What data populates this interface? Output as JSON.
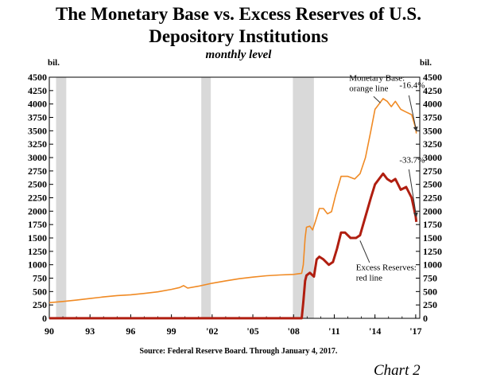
{
  "chart_data": {
    "type": "line",
    "title": "The Monetary Base vs. Excess Reserves of U.S.",
    "title_line2": "Depository Institutions",
    "subtitle": "monthly level",
    "unit_left": "bil.",
    "unit_right": "bil.",
    "source": "Source: Federal Reserve Board. Through January 4, 2017.",
    "chart_label": "Chart 2",
    "xlim": [
      1990,
      2017.3
    ],
    "ylim": [
      0,
      4500
    ],
    "x_ticks": [
      {
        "x": 1990,
        "label": "90"
      },
      {
        "x": 1993,
        "label": "93"
      },
      {
        "x": 1996,
        "label": "96"
      },
      {
        "x": 1999,
        "label": "99"
      },
      {
        "x": 2002,
        "label": "'02"
      },
      {
        "x": 2005,
        "label": "'05"
      },
      {
        "x": 2008,
        "label": "'08"
      },
      {
        "x": 2011,
        "label": "'11"
      },
      {
        "x": 2014,
        "label": "'14"
      },
      {
        "x": 2017,
        "label": "'17"
      }
    ],
    "y_ticks": [
      0,
      250,
      500,
      750,
      1000,
      1250,
      1500,
      1750,
      2000,
      2250,
      2500,
      2750,
      3000,
      3250,
      3500,
      3750,
      4000,
      4250,
      4500
    ],
    "recessions": [
      [
        1990.5,
        1991.25
      ],
      [
        2001.2,
        2001.9
      ],
      [
        2007.95,
        2009.5
      ]
    ],
    "series": [
      {
        "name": "Monetary Base",
        "color": "#f08a24",
        "points": [
          [
            1990.0,
            292
          ],
          [
            1991.0,
            315
          ],
          [
            1992.0,
            340
          ],
          [
            1993.0,
            370
          ],
          [
            1994.0,
            400
          ],
          [
            1995.0,
            425
          ],
          [
            1996.0,
            440
          ],
          [
            1997.0,
            465
          ],
          [
            1998.0,
            495
          ],
          [
            1999.0,
            540
          ],
          [
            1999.6,
            575
          ],
          [
            1999.9,
            610
          ],
          [
            2000.2,
            565
          ],
          [
            2001.0,
            600
          ],
          [
            2002.0,
            655
          ],
          [
            2003.0,
            700
          ],
          [
            2004.0,
            740
          ],
          [
            2005.0,
            770
          ],
          [
            2006.0,
            795
          ],
          [
            2007.0,
            810
          ],
          [
            2008.0,
            820
          ],
          [
            2008.6,
            840
          ],
          [
            2008.72,
            1000
          ],
          [
            2008.85,
            1500
          ],
          [
            2008.95,
            1700
          ],
          [
            2009.2,
            1720
          ],
          [
            2009.4,
            1650
          ],
          [
            2009.6,
            1800
          ],
          [
            2009.9,
            2050
          ],
          [
            2010.2,
            2050
          ],
          [
            2010.5,
            1950
          ],
          [
            2010.8,
            1990
          ],
          [
            2011.1,
            2300
          ],
          [
            2011.5,
            2650
          ],
          [
            2012.0,
            2650
          ],
          [
            2012.5,
            2600
          ],
          [
            2012.9,
            2700
          ],
          [
            2013.3,
            3000
          ],
          [
            2013.7,
            3500
          ],
          [
            2014.0,
            3900
          ],
          [
            2014.3,
            4000
          ],
          [
            2014.6,
            4100
          ],
          [
            2014.9,
            4050
          ],
          [
            2015.2,
            3950
          ],
          [
            2015.5,
            4050
          ],
          [
            2015.9,
            3900
          ],
          [
            2016.3,
            3850
          ],
          [
            2016.7,
            3800
          ],
          [
            2017.0,
            3550
          ],
          [
            2017.05,
            3450
          ]
        ]
      },
      {
        "name": "Excess Reserves",
        "color": "#b01e10",
        "points": [
          [
            1990.0,
            2
          ],
          [
            2008.0,
            2
          ],
          [
            2008.6,
            2
          ],
          [
            2008.72,
            300
          ],
          [
            2008.85,
            700
          ],
          [
            2008.95,
            800
          ],
          [
            2009.2,
            850
          ],
          [
            2009.5,
            780
          ],
          [
            2009.7,
            1100
          ],
          [
            2009.9,
            1150
          ],
          [
            2010.2,
            1100
          ],
          [
            2010.6,
            1000
          ],
          [
            2010.9,
            1050
          ],
          [
            2011.2,
            1300
          ],
          [
            2011.5,
            1600
          ],
          [
            2011.8,
            1600
          ],
          [
            2012.2,
            1500
          ],
          [
            2012.6,
            1500
          ],
          [
            2012.9,
            1550
          ],
          [
            2013.3,
            1900
          ],
          [
            2013.7,
            2250
          ],
          [
            2014.0,
            2500
          ],
          [
            2014.3,
            2600
          ],
          [
            2014.6,
            2700
          ],
          [
            2014.9,
            2600
          ],
          [
            2015.2,
            2550
          ],
          [
            2015.5,
            2600
          ],
          [
            2015.9,
            2400
          ],
          [
            2016.3,
            2450
          ],
          [
            2016.7,
            2250
          ],
          [
            2017.0,
            1900
          ],
          [
            2017.05,
            1800
          ]
        ]
      }
    ],
    "annotations": [
      {
        "name": "monetary-base-label",
        "lines": [
          "Monetary Base:",
          "orange line"
        ],
        "x": 2012.1,
        "y": 4430
      },
      {
        "name": "monetary-base-change",
        "lines": [
          "-16.4%"
        ],
        "x": 2015.8,
        "y": 4300
      },
      {
        "name": "excess-reserves-change",
        "lines": [
          "-33.7%"
        ],
        "x": 2015.8,
        "y": 2900
      },
      {
        "name": "excess-reserves-label",
        "lines": [
          "Excess Reserves:",
          "red line"
        ],
        "x": 2012.6,
        "y": 900
      }
    ]
  }
}
